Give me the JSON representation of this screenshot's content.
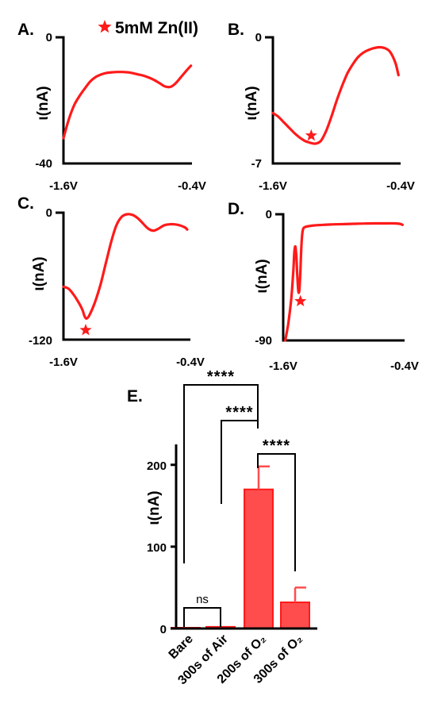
{
  "legend": {
    "marker": "star-icon",
    "label": "5mM Zn(II)",
    "color": "#ff1a1a"
  },
  "chart_data": [
    {
      "panel": "A.",
      "type": "line",
      "ylabel": "ι(nA)",
      "x_ticks": [
        "-1.6V",
        "-0.4V"
      ],
      "y_ticks": [
        "0",
        "-40"
      ],
      "xlim": [
        -1.6,
        -0.4
      ],
      "ylim": [
        -40,
        0
      ],
      "x": [
        -1.6,
        -1.55,
        -1.5,
        -1.45,
        -1.4,
        -1.35,
        -1.3,
        -1.25,
        -1.2,
        -1.15,
        -1.1,
        -1.05,
        -1.0,
        -0.95,
        -0.9,
        -0.85,
        -0.8,
        -0.75,
        -0.7,
        -0.65,
        -0.6,
        -0.55,
        -0.5,
        -0.45,
        -0.41
      ],
      "y": [
        -32,
        -26,
        -21.5,
        -18.6,
        -16.2,
        -14.0,
        -12.6,
        -11.8,
        -11.3,
        -11.1,
        -11.0,
        -11.0,
        -11.1,
        -11.4,
        -11.8,
        -12.2,
        -12.8,
        -13.6,
        -14.6,
        -15.6,
        -15.7,
        -14.5,
        -12.5,
        -10.5,
        -9.0
      ],
      "markers": []
    },
    {
      "panel": "B.",
      "type": "line",
      "ylabel": "ι(nA)",
      "x_ticks": [
        "-1.6V",
        "-0.4V"
      ],
      "y_ticks": [
        "0",
        "-7"
      ],
      "xlim": [
        -1.6,
        -0.4
      ],
      "ylim": [
        -7,
        0
      ],
      "x": [
        -1.6,
        -1.55,
        -1.5,
        -1.45,
        -1.4,
        -1.35,
        -1.3,
        -1.25,
        -1.2,
        -1.15,
        -1.1,
        -1.05,
        -1.0,
        -0.95,
        -0.9,
        -0.85,
        -0.8,
        -0.75,
        -0.7,
        -0.65,
        -0.6,
        -0.55,
        -0.5,
        -0.45,
        -0.42
      ],
      "y": [
        -4.2,
        -4.4,
        -4.7,
        -5.0,
        -5.3,
        -5.55,
        -5.75,
        -5.85,
        -5.9,
        -5.75,
        -5.2,
        -4.4,
        -3.5,
        -2.7,
        -2.0,
        -1.5,
        -1.1,
        -0.85,
        -0.7,
        -0.6,
        -0.55,
        -0.6,
        -0.8,
        -1.4,
        -2.1
      ],
      "markers": [
        {
          "x": -1.24,
          "y": -5.45
        }
      ]
    },
    {
      "panel": "C.",
      "type": "line",
      "ylabel": "ι(nA)",
      "x_ticks": [
        "-1.6V",
        "-0.4V"
      ],
      "y_ticks": [
        "0",
        "-120"
      ],
      "xlim": [
        -1.6,
        -0.4
      ],
      "ylim": [
        -120,
        0
      ],
      "x": [
        -1.6,
        -1.55,
        -1.5,
        -1.45,
        -1.42,
        -1.4,
        -1.38,
        -1.35,
        -1.3,
        -1.25,
        -1.2,
        -1.15,
        -1.1,
        -1.05,
        -1.0,
        -0.95,
        -0.9,
        -0.85,
        -0.8,
        -0.75,
        -0.7,
        -0.65,
        -0.6,
        -0.55,
        -0.5,
        -0.45,
        -0.43
      ],
      "y": [
        -70,
        -72,
        -78,
        -86,
        -92,
        -98,
        -100,
        -96,
        -84,
        -68,
        -48,
        -28,
        -12,
        -4,
        -1.5,
        -2.0,
        -5,
        -10,
        -15,
        -17,
        -15,
        -12,
        -11,
        -11,
        -12,
        -14,
        -16
      ],
      "markers": [
        {
          "x": -1.39,
          "y": -111
        }
      ]
    },
    {
      "panel": "D.",
      "type": "line",
      "ylabel": "ι(nA)",
      "x_ticks": [
        "-1.6V",
        "-0.4V"
      ],
      "y_ticks": [
        "0",
        "-90"
      ],
      "xlim": [
        -1.6,
        -0.4
      ],
      "ylim": [
        -90,
        0
      ],
      "x": [
        -1.58,
        -1.55,
        -1.52,
        -1.5,
        -1.49,
        -1.48,
        -1.47,
        -1.46,
        -1.45,
        -1.44,
        -1.43,
        -1.42,
        -1.41,
        -1.4,
        -1.38,
        -1.35,
        -1.3,
        -1.2,
        -1.1,
        -1.0,
        -0.9,
        -0.8,
        -0.7,
        -0.6,
        -0.5,
        -0.45,
        -0.42
      ],
      "y": [
        -90,
        -78,
        -60,
        -40,
        -27,
        -23,
        -30,
        -45,
        -55,
        -54,
        -40,
        -22,
        -13,
        -10,
        -9,
        -8.5,
        -8,
        -7.5,
        -7.2,
        -7,
        -6.8,
        -6.6,
        -6.5,
        -6.5,
        -6.5,
        -6.8,
        -7.5
      ],
      "markers": [
        {
          "x": -1.43,
          "y": -62
        }
      ]
    },
    {
      "panel": "E.",
      "type": "bar",
      "ylabel": "ι(nA)",
      "categories": [
        "Bare",
        "300s of Air",
        "200s of O₂",
        "300s of O₂"
      ],
      "values": [
        1,
        2,
        170,
        32
      ],
      "errors": [
        0,
        0,
        28,
        18
      ],
      "y_ticks": [
        "0",
        "100",
        "200"
      ],
      "ylim": [
        0,
        225
      ],
      "significance": [
        {
          "from": 0,
          "to": 2,
          "label": "****"
        },
        {
          "from": 1,
          "to": 2,
          "label": "****"
        },
        {
          "from": 2,
          "to": 3,
          "label": "****"
        },
        {
          "from": 0,
          "to": 1,
          "label": "ns"
        }
      ]
    }
  ]
}
